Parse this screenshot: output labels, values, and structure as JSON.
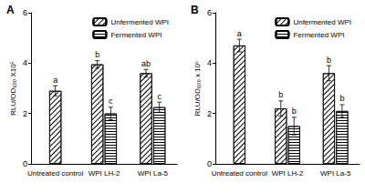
{
  "chart_data": [
    {
      "type": "bar",
      "title": "A",
      "ylabel": "RLU/OD₆₀₀ X10⁵",
      "categories": [
        "Untreated control",
        "WPI LH-2",
        "WPI La-5"
      ],
      "series": [
        {
          "name": "Unfermented WPI",
          "color": "#000000",
          "values": [
            2.9,
            3.95,
            3.6
          ],
          "errors": [
            0.2,
            0.15,
            0.15
          ],
          "letters": [
            "a",
            "b",
            "ab"
          ]
        },
        {
          "name": "Fermented WPI",
          "color": "#000000",
          "values": [
            null,
            2.0,
            2.25
          ],
          "errors": [
            null,
            0.25,
            0.2
          ],
          "letters": [
            null,
            "c",
            "c"
          ]
        }
      ],
      "ylim": [
        0,
        6
      ],
      "yticks": [
        0,
        2,
        4,
        6
      ],
      "grid": false,
      "legend": "upper right"
    },
    {
      "type": "bar",
      "title": "B",
      "ylabel": "RLU/OD₆₀₀ x 10⁵",
      "categories": [
        "Untreated control",
        "WPI LH-2",
        "WPI La-5"
      ],
      "series": [
        {
          "name": "Unfermented WPI",
          "color": "#000000",
          "values": [
            4.7,
            2.2,
            3.6
          ],
          "errors": [
            0.25,
            0.3,
            0.3
          ],
          "letters": [
            "a",
            "b",
            "b"
          ]
        },
        {
          "name": "Fermented WPI",
          "color": "#000000",
          "values": [
            null,
            1.5,
            2.1
          ],
          "errors": [
            null,
            0.35,
            0.25
          ],
          "letters": [
            null,
            "b",
            "b"
          ]
        }
      ],
      "ylim": [
        0,
        6
      ],
      "yticks": [
        0,
        2,
        4,
        6
      ],
      "grid": false,
      "legend": "upper right"
    }
  ]
}
